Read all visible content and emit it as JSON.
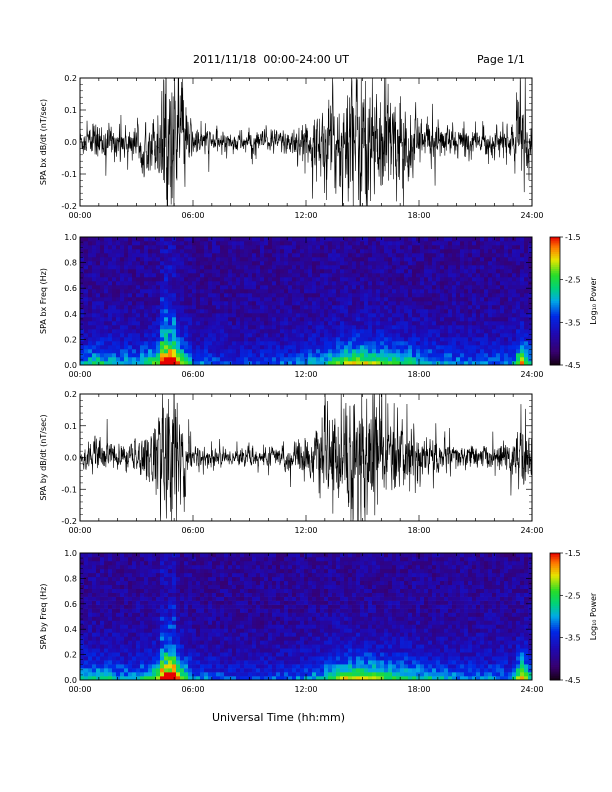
{
  "header": {
    "title": "2011/11/18  00:00-24:00 UT",
    "page": "Page 1/1"
  },
  "x_axis_title": "Universal Time (hh:mm)",
  "colorbar_label": "Log₁₀ Power",
  "chart_data": [
    {
      "type": "line",
      "ylabel": "SPA bx dB/dt (nT/sec)",
      "xlabel": "",
      "xticks": [
        "00:00",
        "06:00",
        "12:00",
        "18:00",
        "24:00"
      ],
      "xlim_hours": [
        0,
        24
      ],
      "yticks": [
        "-0.2",
        "-0.1",
        "0.0",
        "0.1",
        "0.2"
      ],
      "ylim": [
        -0.2,
        0.2
      ],
      "color": "#000000",
      "activity_profile": {
        "hours": [
          0,
          1,
          2,
          3,
          4,
          4.8,
          5.0,
          5.5,
          6,
          7,
          8,
          9,
          10,
          11,
          12,
          13,
          14,
          14.5,
          15,
          15.5,
          16,
          17,
          18,
          19,
          20,
          21,
          22,
          23,
          23.4,
          23.7,
          24
        ],
        "amplitude": [
          0.035,
          0.05,
          0.04,
          0.045,
          0.08,
          0.2,
          0.2,
          0.12,
          0.04,
          0.03,
          0.025,
          0.03,
          0.03,
          0.04,
          0.05,
          0.1,
          0.15,
          0.2,
          0.2,
          0.18,
          0.16,
          0.12,
          0.08,
          0.05,
          0.04,
          0.035,
          0.035,
          0.05,
          0.15,
          0.08,
          0.04
        ]
      }
    },
    {
      "type": "heatmap",
      "ylabel": "SPA bx Freq (Hz)",
      "xticks": [
        "00:00",
        "06:00",
        "12:00",
        "18:00",
        "24:00"
      ],
      "xlim_hours": [
        0,
        24
      ],
      "yticks": [
        "0.0",
        "0.2",
        "0.4",
        "0.6",
        "0.8",
        "1.0"
      ],
      "ylim": [
        0,
        1.0
      ],
      "colorbar": {
        "ticks": [
          "-1.5",
          "-2.5",
          "-3.5",
          "-4.5"
        ],
        "range": [
          -4.5,
          -1.5
        ]
      },
      "activity_profile": {
        "hours": [
          0,
          1,
          2,
          3,
          4,
          4.5,
          5,
          5.5,
          6,
          8,
          10,
          12,
          13,
          14,
          15,
          16,
          17,
          18,
          20,
          22,
          23,
          23.4,
          24
        ],
        "level": [
          0.35,
          0.45,
          0.35,
          0.35,
          0.55,
          0.85,
          0.85,
          0.6,
          0.3,
          0.22,
          0.22,
          0.3,
          0.4,
          0.6,
          0.65,
          0.55,
          0.5,
          0.4,
          0.3,
          0.28,
          0.3,
          0.8,
          0.35
        ]
      }
    },
    {
      "type": "line",
      "ylabel": "SPA by dB/dt (nT/sec)",
      "xticks": [
        "00:00",
        "06:00",
        "12:00",
        "18:00",
        "24:00"
      ],
      "xlim_hours": [
        0,
        24
      ],
      "yticks": [
        "-0.2",
        "-0.1",
        "0.0",
        "0.1",
        "0.2"
      ],
      "ylim": [
        -0.2,
        0.2
      ],
      "color": "#000000",
      "activity_profile": {
        "hours": [
          0,
          1,
          2,
          3,
          4,
          4.5,
          5.0,
          5.5,
          6,
          7,
          8,
          9,
          10,
          11,
          12,
          13,
          14,
          14.5,
          15,
          15.5,
          16,
          17,
          18,
          19,
          20,
          21,
          22,
          23,
          23.4,
          23.7,
          24
        ],
        "amplitude": [
          0.03,
          0.05,
          0.035,
          0.04,
          0.09,
          0.19,
          0.2,
          0.12,
          0.035,
          0.025,
          0.02,
          0.025,
          0.025,
          0.035,
          0.05,
          0.09,
          0.14,
          0.2,
          0.2,
          0.17,
          0.14,
          0.1,
          0.07,
          0.045,
          0.035,
          0.03,
          0.03,
          0.05,
          0.13,
          0.07,
          0.035
        ]
      }
    },
    {
      "type": "heatmap",
      "ylabel": "SPA by Freq (Hz)",
      "xticks": [
        "00:00",
        "06:00",
        "12:00",
        "18:00",
        "24:00"
      ],
      "xlim_hours": [
        0,
        24
      ],
      "yticks": [
        "0.0",
        "0.2",
        "0.4",
        "0.6",
        "0.8",
        "1.0"
      ],
      "ylim": [
        0,
        1.0
      ],
      "colorbar": {
        "ticks": [
          "-1.5",
          "-2.5",
          "-3.5",
          "-4.5"
        ],
        "range": [
          -4.5,
          -1.5
        ]
      },
      "activity_profile": {
        "hours": [
          0,
          1,
          2,
          3,
          4,
          4.5,
          5,
          5.5,
          6,
          8,
          10,
          12,
          13,
          14,
          15,
          16,
          17,
          18,
          20,
          22,
          23,
          23.4,
          24
        ],
        "level": [
          0.35,
          0.45,
          0.35,
          0.35,
          0.55,
          0.85,
          0.85,
          0.6,
          0.3,
          0.22,
          0.22,
          0.3,
          0.4,
          0.62,
          0.68,
          0.55,
          0.5,
          0.42,
          0.32,
          0.3,
          0.3,
          0.8,
          0.35
        ]
      }
    }
  ]
}
